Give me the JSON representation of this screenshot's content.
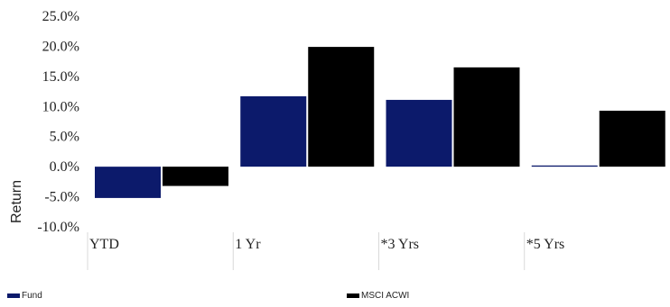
{
  "chart_data": {
    "type": "bar",
    "categories": [
      "YTD",
      "1 Yr",
      "*3 Yrs",
      "*5 Yrs"
    ],
    "series": [
      {
        "name": "Fund",
        "values": [
          -5.2,
          11.7,
          11.1,
          0.2
        ],
        "color": "#0c1a6b"
      },
      {
        "name": "MSCI ACWI",
        "values": [
          -3.2,
          19.9,
          16.5,
          9.3
        ],
        "color": "#000000"
      }
    ],
    "yticks": [
      "-10.0%",
      "-5.0%",
      "0.0%",
      "5.0%",
      "10.0%",
      "15.0%",
      "20.0%",
      "25.0%"
    ],
    "ytick_values": [
      -10,
      -5,
      0,
      5,
      10,
      15,
      20,
      25
    ],
    "ylabel": "Return",
    "ylim": [
      -10,
      25
    ],
    "legend_position": "bottom"
  }
}
